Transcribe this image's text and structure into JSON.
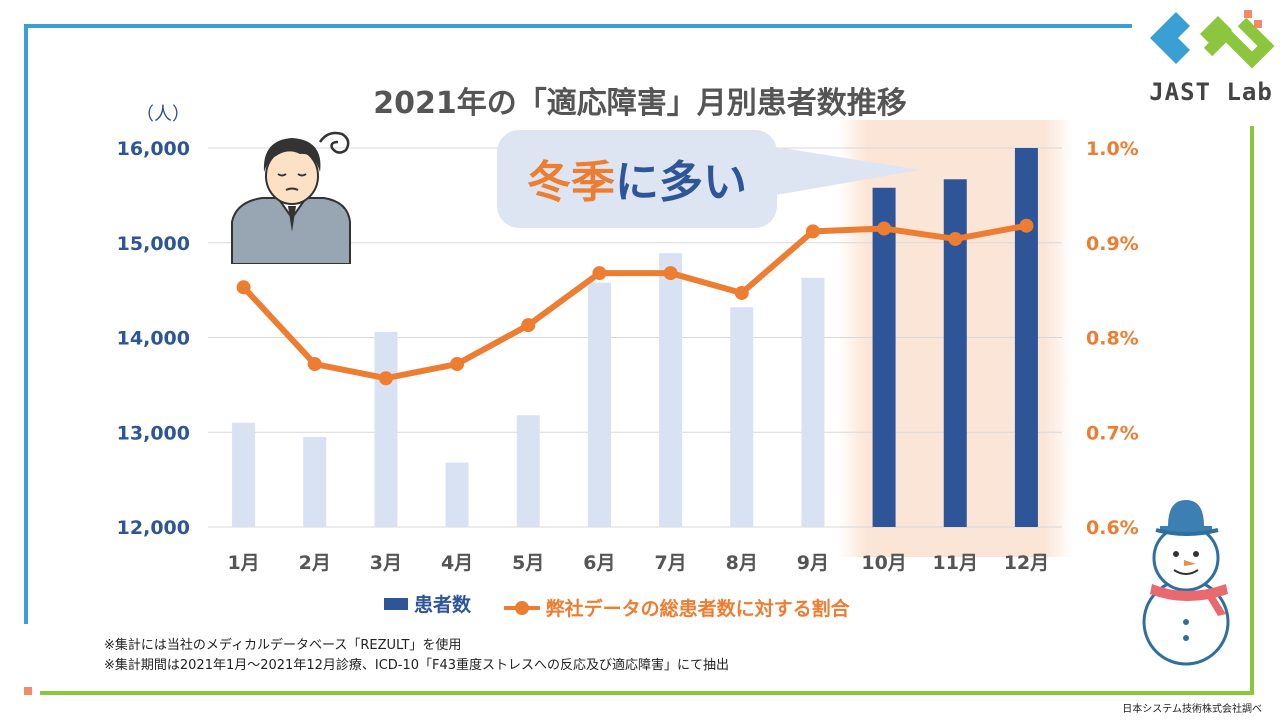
{
  "title": "2021年の「適応障害」月別患者数推移",
  "callout": {
    "part1": "冬季",
    "part2": "に多い"
  },
  "notes": [
    "※集計には当社のメディカルデータベース「REZULT」を使用",
    "※集計期間は2021年1月～2021年12月診療、ICD-10「F43重度ストレスへの反応及び適応障害」にて抽出"
  ],
  "source": "日本システム技術株式会社調べ",
  "logo": {
    "text": "JAST Lab"
  },
  "colors": {
    "bar_light": "#d9e2f3",
    "bar_dark": "#2e5597",
    "line": "#ed7d31",
    "highlight": "#fbe5d6"
  },
  "icons": [
    "worried-person-icon",
    "snowman-icon",
    "jast-lab-logo"
  ],
  "chart_data": {
    "type": "bar",
    "categories": [
      "1月",
      "2月",
      "3月",
      "4月",
      "5月",
      "6月",
      "7月",
      "8月",
      "9月",
      "10月",
      "11月",
      "12月"
    ],
    "series": [
      {
        "name": "患者数",
        "type": "bar",
        "axis": "left",
        "values": [
          13100,
          12950,
          14060,
          12680,
          13180,
          14580,
          14890,
          14320,
          14630,
          15580,
          15670,
          16000
        ]
      },
      {
        "name": "弊社データの総患者数に対する割合",
        "type": "line",
        "axis": "right",
        "values": [
          0.853,
          0.772,
          0.757,
          0.772,
          0.813,
          0.868,
          0.868,
          0.847,
          0.912,
          0.915,
          0.904,
          0.918
        ]
      }
    ],
    "y_left": {
      "unit": "（人）",
      "min": 12000,
      "max": 16000,
      "ticks": [
        "12,000",
        "13,000",
        "14,000",
        "15,000",
        "16,000"
      ]
    },
    "y_right": {
      "min": 0.6,
      "max": 1.0,
      "ticks": [
        "0.6%",
        "0.7%",
        "0.8%",
        "0.9%",
        "1.0%"
      ]
    },
    "highlighted_categories": [
      "10月",
      "11月",
      "12月"
    ],
    "grid": true,
    "legend_position": "bottom"
  }
}
